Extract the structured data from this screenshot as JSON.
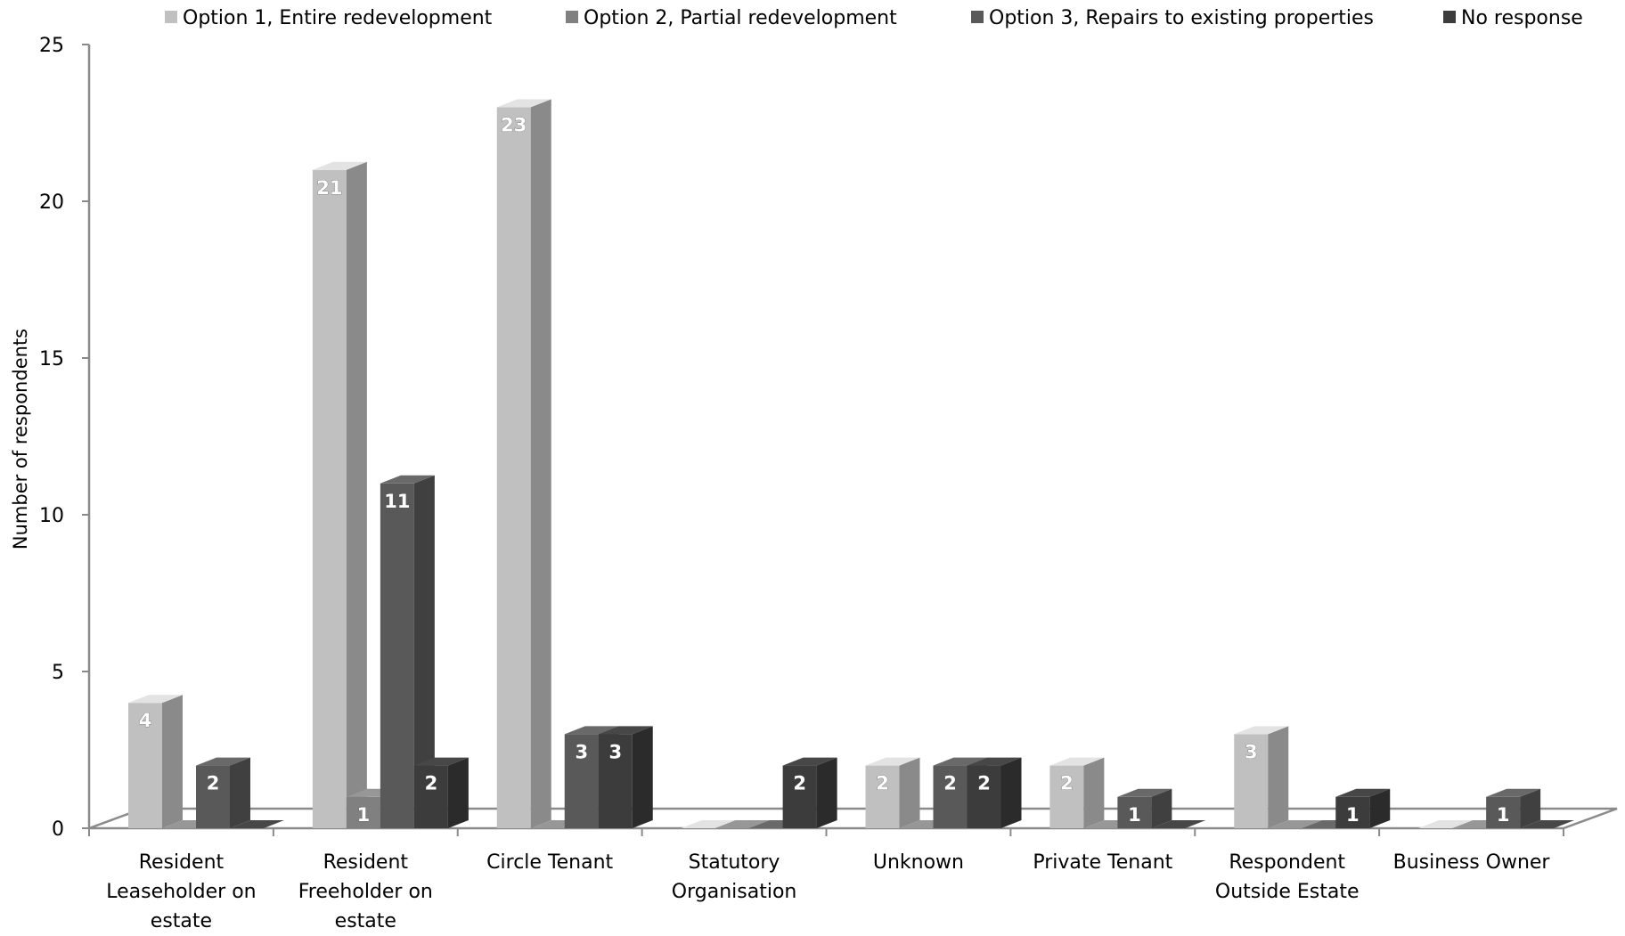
{
  "chart_data": {
    "type": "bar",
    "style": "3d-clustered-column",
    "ylabel": "Number of respondents",
    "ylim": [
      0,
      25
    ],
    "yticks": [
      0,
      5,
      10,
      15,
      20,
      25
    ],
    "grid": false,
    "legend_position": "top",
    "categories": [
      [
        "Resident",
        "Leaseholder on",
        "estate"
      ],
      [
        "Resident",
        "Freeholder on",
        "estate"
      ],
      [
        "Circle Tenant"
      ],
      [
        "Statutory",
        "Organisation"
      ],
      [
        "Unknown"
      ],
      [
        "Private Tenant"
      ],
      [
        "Respondent",
        "Outside Estate"
      ],
      [
        "Business Owner"
      ]
    ],
    "series": [
      {
        "name": "Option 1, Entire redevelopment",
        "color": "#c0c0c0",
        "values": [
          4,
          21,
          23,
          0,
          2,
          2,
          3,
          0
        ]
      },
      {
        "name": "Option 2, Partial redevelopment",
        "color": "#808080",
        "values": [
          0,
          1,
          0,
          0,
          0,
          0,
          0,
          0
        ]
      },
      {
        "name": "Option 3, Repairs to existing properties",
        "color": "#595959",
        "values": [
          2,
          11,
          3,
          0,
          2,
          1,
          0,
          1
        ]
      },
      {
        "name": "No response",
        "color": "#3c3c3c",
        "values": [
          0,
          2,
          3,
          2,
          2,
          0,
          1,
          0
        ]
      }
    ]
  }
}
